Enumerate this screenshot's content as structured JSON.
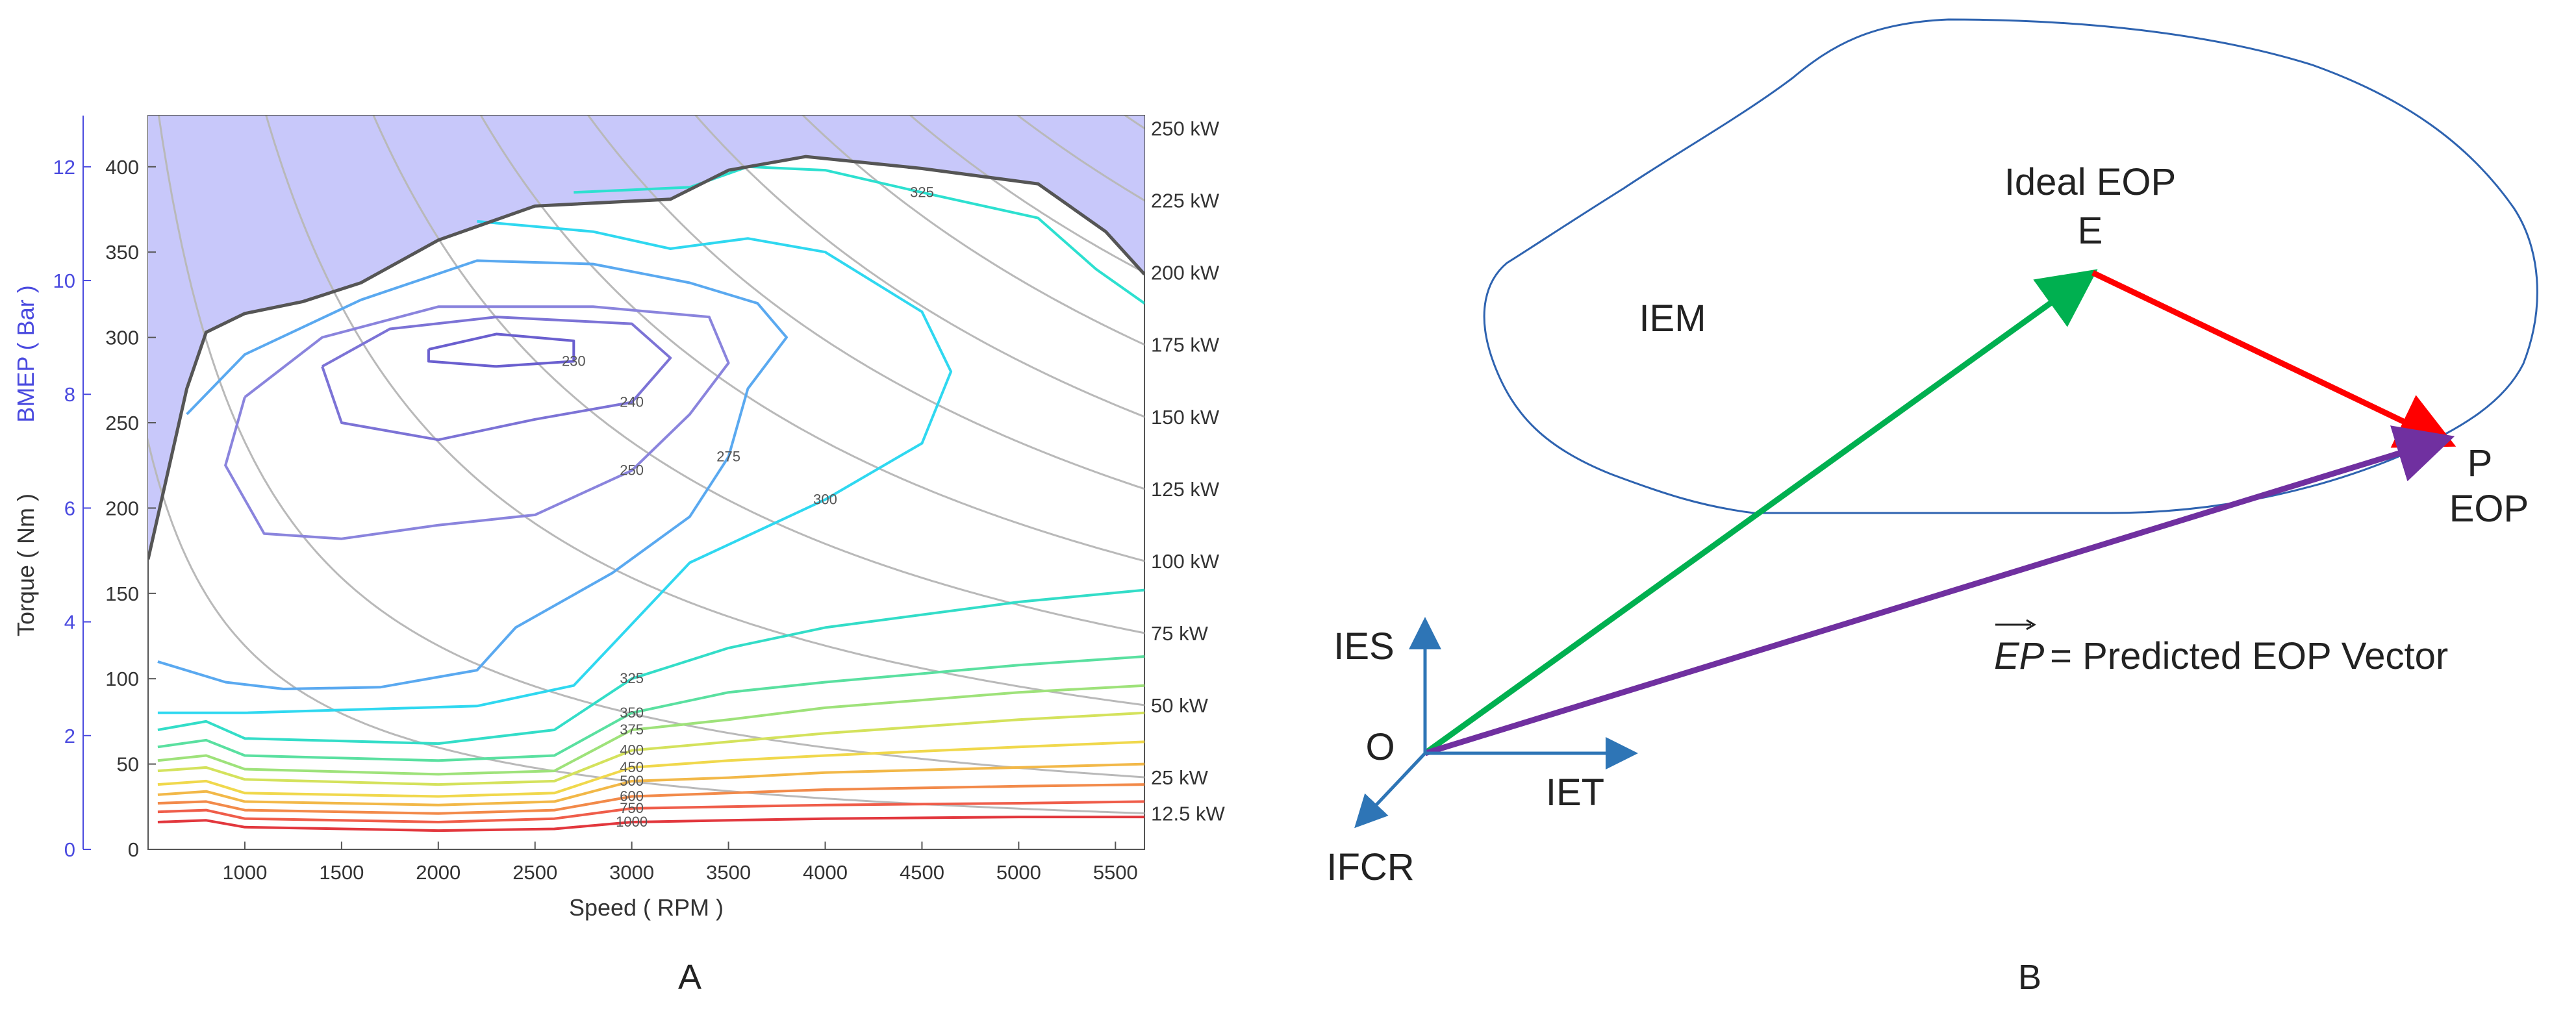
{
  "panels": {
    "a": "A",
    "b": "B"
  },
  "chart_data": [
    {
      "type": "contour",
      "xlabel": "Speed ( RPM )",
      "ylabel": "Torque ( Nm )",
      "y2label": "BMEP ( Bar )",
      "xlim": [
        500,
        5650
      ],
      "ylim": [
        0,
        430
      ],
      "bmep_lim": [
        0,
        12.9
      ],
      "x_ticks": [
        "1000",
        "1500",
        "2000",
        "2500",
        "3000",
        "3500",
        "4000",
        "4500",
        "5000",
        "5500"
      ],
      "y_ticks": [
        "0",
        "50",
        "100",
        "150",
        "200",
        "250",
        "300",
        "350",
        "400"
      ],
      "bmep_ticks": [
        "0",
        "2",
        "4",
        "6",
        "8",
        "10",
        "12"
      ],
      "power_lines": [
        {
          "label": "250 kW",
          "kw": 250
        },
        {
          "label": "225 kW",
          "kw": 225
        },
        {
          "label": "200 kW",
          "kw": 200
        },
        {
          "label": "175 kW",
          "kw": 175
        },
        {
          "label": "150 kW",
          "kw": 150
        },
        {
          "label": "125 kW",
          "kw": 125
        },
        {
          "label": "100 kW",
          "kw": 100
        },
        {
          "label": "75 kW",
          "kw": 75
        },
        {
          "label": "50 kW",
          "kw": 50
        },
        {
          "label": "25 kW",
          "kw": 25
        },
        {
          "label": "12.5 kW",
          "kw": 12.5
        }
      ],
      "max_torque_curve": [
        [
          500,
          170
        ],
        [
          700,
          270
        ],
        [
          800,
          303
        ],
        [
          1000,
          314
        ],
        [
          1300,
          321
        ],
        [
          1600,
          332
        ],
        [
          2000,
          357
        ],
        [
          2500,
          377
        ],
        [
          3200,
          381
        ],
        [
          3500,
          398
        ],
        [
          3900,
          406
        ],
        [
          4500,
          399
        ],
        [
          5100,
          390
        ],
        [
          5450,
          362
        ],
        [
          5650,
          337
        ]
      ],
      "contours": [
        {
          "label": "230",
          "color": "#6a5fcf",
          "points": [
            [
              1950,
              293
            ],
            [
              2300,
              302
            ],
            [
              2700,
              298
            ],
            [
              2700,
              286
            ],
            [
              2300,
              283
            ],
            [
              1950,
              286
            ],
            [
              1950,
              293
            ]
          ]
        },
        {
          "label": "240",
          "color": "#7c73d6",
          "points": [
            [
              1400,
              283
            ],
            [
              1750,
              305
            ],
            [
              2300,
              312
            ],
            [
              3000,
              308
            ],
            [
              3200,
              288
            ],
            [
              3000,
              262
            ],
            [
              2500,
              252
            ],
            [
              2000,
              240
            ],
            [
              1500,
              250
            ],
            [
              1400,
              283
            ]
          ]
        },
        {
          "label": "250",
          "color": "#8a84dd",
          "points": [
            [
              1000,
              265
            ],
            [
              1400,
              300
            ],
            [
              2000,
              318
            ],
            [
              2800,
              318
            ],
            [
              3400,
              312
            ],
            [
              3500,
              285
            ],
            [
              3300,
              255
            ],
            [
              3000,
              222
            ],
            [
              2500,
              196
            ],
            [
              2000,
              190
            ],
            [
              1500,
              182
            ],
            [
              1100,
              185
            ],
            [
              900,
              225
            ],
            [
              1000,
              265
            ]
          ]
        },
        {
          "label": "275",
          "color": "#5aa9f0",
          "points": [
            [
              700,
              255
            ],
            [
              1000,
              290
            ],
            [
              1600,
              322
            ],
            [
              2200,
              345
            ],
            [
              2800,
              343
            ],
            [
              3300,
              332
            ],
            [
              3650,
              320
            ],
            [
              3800,
              300
            ],
            [
              3600,
              270
            ],
            [
              3500,
              230
            ],
            [
              3300,
              195
            ],
            [
              2900,
              162
            ],
            [
              2400,
              130
            ],
            [
              2200,
              105
            ],
            [
              1700,
              95
            ],
            [
              1200,
              94
            ],
            [
              900,
              98
            ],
            [
              550,
              110
            ]
          ]
        },
        {
          "label": "300",
          "color": "#2fd8f0",
          "points": [
            [
              2200,
              368
            ],
            [
              2800,
              362
            ],
            [
              3200,
              352
            ],
            [
              3600,
              358
            ],
            [
              4000,
              350
            ],
            [
              4500,
              315
            ],
            [
              4650,
              280
            ],
            [
              4500,
              238
            ],
            [
              4000,
              205
            ],
            [
              3300,
              168
            ],
            [
              2900,
              120
            ],
            [
              2700,
              96
            ],
            [
              2200,
              84
            ],
            [
              1600,
              82
            ],
            [
              1000,
              80
            ],
            [
              550,
              80
            ]
          ]
        },
        {
          "label": "325",
          "color": "#2de0d0",
          "points": [
            [
              2700,
              385
            ],
            [
              3300,
              388
            ],
            [
              3600,
              400
            ],
            [
              4000,
              398
            ],
            [
              4500,
              385
            ],
            [
              5100,
              370
            ],
            [
              5400,
              340
            ],
            [
              5650,
              320
            ]
          ]
        },
        {
          "label": "325",
          "color": "#33ddc8",
          "points": [
            [
              550,
              70
            ],
            [
              800,
              75
            ],
            [
              1000,
              65
            ],
            [
              2000,
              62
            ],
            [
              2600,
              70
            ],
            [
              3000,
              100
            ],
            [
              3500,
              118
            ],
            [
              4000,
              130
            ],
            [
              5000,
              145
            ],
            [
              5650,
              152
            ]
          ]
        },
        {
          "label": "350",
          "color": "#5ae0a0",
          "points": [
            [
              550,
              60
            ],
            [
              800,
              64
            ],
            [
              1000,
              55
            ],
            [
              2000,
              52
            ],
            [
              2600,
              55
            ],
            [
              3000,
              80
            ],
            [
              3500,
              92
            ],
            [
              4000,
              98
            ],
            [
              5000,
              108
            ],
            [
              5650,
              113
            ]
          ]
        },
        {
          "label": "375",
          "color": "#9ee27a",
          "points": [
            [
              550,
              52
            ],
            [
              800,
              55
            ],
            [
              1000,
              47
            ],
            [
              2000,
              44
            ],
            [
              2600,
              46
            ],
            [
              3000,
              70
            ],
            [
              3500,
              76
            ],
            [
              4000,
              83
            ],
            [
              5000,
              92
            ],
            [
              5650,
              96
            ]
          ]
        },
        {
          "label": "400",
          "color": "#d4e25c",
          "points": [
            [
              550,
              46
            ],
            [
              800,
              48
            ],
            [
              1000,
              41
            ],
            [
              2000,
              38
            ],
            [
              2600,
              40
            ],
            [
              3000,
              58
            ],
            [
              3500,
              63
            ],
            [
              4000,
              68
            ],
            [
              5000,
              76
            ],
            [
              5650,
              80
            ]
          ]
        },
        {
          "label": "450",
          "color": "#f0d84c",
          "points": [
            [
              550,
              38
            ],
            [
              800,
              40
            ],
            [
              1000,
              33
            ],
            [
              2000,
              31
            ],
            [
              2600,
              33
            ],
            [
              3000,
              48
            ],
            [
              3500,
              52
            ],
            [
              4000,
              55
            ],
            [
              5000,
              60
            ],
            [
              5650,
              63
            ]
          ]
        },
        {
          "label": "500",
          "color": "#f2b848",
          "points": [
            [
              550,
              32
            ],
            [
              800,
              34
            ],
            [
              1000,
              28
            ],
            [
              2000,
              26
            ],
            [
              2600,
              28
            ],
            [
              3000,
              40
            ],
            [
              3500,
              42
            ],
            [
              4000,
              45
            ],
            [
              5000,
              48
            ],
            [
              5650,
              50
            ]
          ]
        },
        {
          "label": "600",
          "color": "#f28a4a",
          "points": [
            [
              550,
              27
            ],
            [
              800,
              28
            ],
            [
              1000,
              23
            ],
            [
              2000,
              21
            ],
            [
              2600,
              23
            ],
            [
              3000,
              31
            ],
            [
              3500,
              33
            ],
            [
              4000,
              35
            ],
            [
              5000,
              37
            ],
            [
              5650,
              38
            ]
          ]
        },
        {
          "label": "750",
          "color": "#ef5d4a",
          "points": [
            [
              550,
              22
            ],
            [
              800,
              23
            ],
            [
              1000,
              18
            ],
            [
              2000,
              16
            ],
            [
              2600,
              18
            ],
            [
              3000,
              24
            ],
            [
              3500,
              25
            ],
            [
              4000,
              26
            ],
            [
              5000,
              27
            ],
            [
              5650,
              28
            ]
          ]
        },
        {
          "label": "1000",
          "color": "#e2373d",
          "points": [
            [
              550,
              16
            ],
            [
              800,
              17
            ],
            [
              1000,
              13
            ],
            [
              2000,
              11
            ],
            [
              2600,
              12
            ],
            [
              3000,
              16
            ],
            [
              3500,
              17
            ],
            [
              4000,
              18
            ],
            [
              5000,
              19
            ],
            [
              5650,
              19
            ]
          ]
        }
      ]
    },
    {
      "type": "diagram",
      "region_label": "IEM",
      "ideal_title": "Ideal EOP",
      "point_e": "E",
      "point_p": "P",
      "point_p_sub": "EOP",
      "origin": "O",
      "axes": {
        "ies": "IES",
        "iet": "IET",
        "ifcr": "IFCR"
      },
      "vector_symbol": "EP",
      "vector_caption": " = Predicted EOP Vector",
      "colors": {
        "green": "#00b050",
        "red": "#ff0000",
        "purple": "#7030a0",
        "blue": "#2e75b6",
        "outline": "#2e63b0"
      }
    }
  ]
}
